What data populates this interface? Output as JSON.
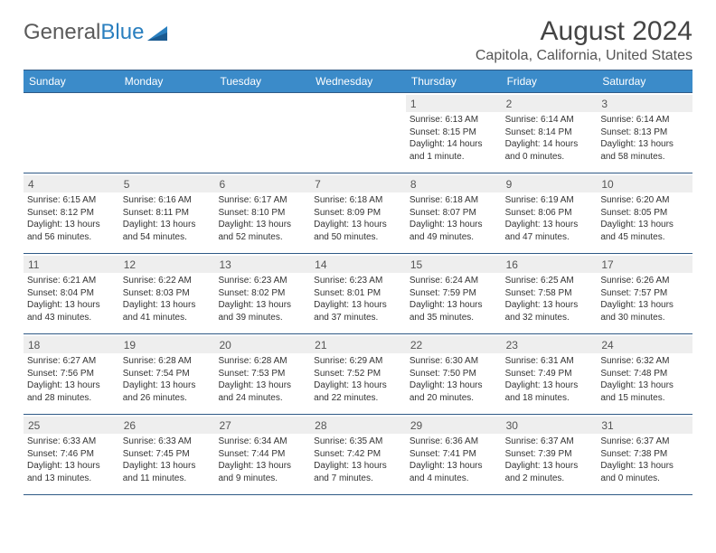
{
  "logo": {
    "text1": "General",
    "text2": "Blue"
  },
  "title": "August 2024",
  "location": "Capitola, California, United States",
  "dow": [
    "Sunday",
    "Monday",
    "Tuesday",
    "Wednesday",
    "Thursday",
    "Friday",
    "Saturday"
  ],
  "colors": {
    "header_bg": "#3b8bc9",
    "header_border": "#2f5a86",
    "daynum_bg": "#eeeeee",
    "logo_blue": "#2a7fbf"
  },
  "weeks": [
    [
      {
        "num": "",
        "empty": true,
        "sunrise": "",
        "sunset": "",
        "daylight": ""
      },
      {
        "num": "",
        "empty": true,
        "sunrise": "",
        "sunset": "",
        "daylight": ""
      },
      {
        "num": "",
        "empty": true,
        "sunrise": "",
        "sunset": "",
        "daylight": ""
      },
      {
        "num": "",
        "empty": true,
        "sunrise": "",
        "sunset": "",
        "daylight": ""
      },
      {
        "num": "1",
        "sunrise": "Sunrise: 6:13 AM",
        "sunset": "Sunset: 8:15 PM",
        "daylight": "Daylight: 14 hours and 1 minute."
      },
      {
        "num": "2",
        "sunrise": "Sunrise: 6:14 AM",
        "sunset": "Sunset: 8:14 PM",
        "daylight": "Daylight: 14 hours and 0 minutes."
      },
      {
        "num": "3",
        "sunrise": "Sunrise: 6:14 AM",
        "sunset": "Sunset: 8:13 PM",
        "daylight": "Daylight: 13 hours and 58 minutes."
      }
    ],
    [
      {
        "num": "4",
        "sunrise": "Sunrise: 6:15 AM",
        "sunset": "Sunset: 8:12 PM",
        "daylight": "Daylight: 13 hours and 56 minutes."
      },
      {
        "num": "5",
        "sunrise": "Sunrise: 6:16 AM",
        "sunset": "Sunset: 8:11 PM",
        "daylight": "Daylight: 13 hours and 54 minutes."
      },
      {
        "num": "6",
        "sunrise": "Sunrise: 6:17 AM",
        "sunset": "Sunset: 8:10 PM",
        "daylight": "Daylight: 13 hours and 52 minutes."
      },
      {
        "num": "7",
        "sunrise": "Sunrise: 6:18 AM",
        "sunset": "Sunset: 8:09 PM",
        "daylight": "Daylight: 13 hours and 50 minutes."
      },
      {
        "num": "8",
        "sunrise": "Sunrise: 6:18 AM",
        "sunset": "Sunset: 8:07 PM",
        "daylight": "Daylight: 13 hours and 49 minutes."
      },
      {
        "num": "9",
        "sunrise": "Sunrise: 6:19 AM",
        "sunset": "Sunset: 8:06 PM",
        "daylight": "Daylight: 13 hours and 47 minutes."
      },
      {
        "num": "10",
        "sunrise": "Sunrise: 6:20 AM",
        "sunset": "Sunset: 8:05 PM",
        "daylight": "Daylight: 13 hours and 45 minutes."
      }
    ],
    [
      {
        "num": "11",
        "sunrise": "Sunrise: 6:21 AM",
        "sunset": "Sunset: 8:04 PM",
        "daylight": "Daylight: 13 hours and 43 minutes."
      },
      {
        "num": "12",
        "sunrise": "Sunrise: 6:22 AM",
        "sunset": "Sunset: 8:03 PM",
        "daylight": "Daylight: 13 hours and 41 minutes."
      },
      {
        "num": "13",
        "sunrise": "Sunrise: 6:23 AM",
        "sunset": "Sunset: 8:02 PM",
        "daylight": "Daylight: 13 hours and 39 minutes."
      },
      {
        "num": "14",
        "sunrise": "Sunrise: 6:23 AM",
        "sunset": "Sunset: 8:01 PM",
        "daylight": "Daylight: 13 hours and 37 minutes."
      },
      {
        "num": "15",
        "sunrise": "Sunrise: 6:24 AM",
        "sunset": "Sunset: 7:59 PM",
        "daylight": "Daylight: 13 hours and 35 minutes."
      },
      {
        "num": "16",
        "sunrise": "Sunrise: 6:25 AM",
        "sunset": "Sunset: 7:58 PM",
        "daylight": "Daylight: 13 hours and 32 minutes."
      },
      {
        "num": "17",
        "sunrise": "Sunrise: 6:26 AM",
        "sunset": "Sunset: 7:57 PM",
        "daylight": "Daylight: 13 hours and 30 minutes."
      }
    ],
    [
      {
        "num": "18",
        "sunrise": "Sunrise: 6:27 AM",
        "sunset": "Sunset: 7:56 PM",
        "daylight": "Daylight: 13 hours and 28 minutes."
      },
      {
        "num": "19",
        "sunrise": "Sunrise: 6:28 AM",
        "sunset": "Sunset: 7:54 PM",
        "daylight": "Daylight: 13 hours and 26 minutes."
      },
      {
        "num": "20",
        "sunrise": "Sunrise: 6:28 AM",
        "sunset": "Sunset: 7:53 PM",
        "daylight": "Daylight: 13 hours and 24 minutes."
      },
      {
        "num": "21",
        "sunrise": "Sunrise: 6:29 AM",
        "sunset": "Sunset: 7:52 PM",
        "daylight": "Daylight: 13 hours and 22 minutes."
      },
      {
        "num": "22",
        "sunrise": "Sunrise: 6:30 AM",
        "sunset": "Sunset: 7:50 PM",
        "daylight": "Daylight: 13 hours and 20 minutes."
      },
      {
        "num": "23",
        "sunrise": "Sunrise: 6:31 AM",
        "sunset": "Sunset: 7:49 PM",
        "daylight": "Daylight: 13 hours and 18 minutes."
      },
      {
        "num": "24",
        "sunrise": "Sunrise: 6:32 AM",
        "sunset": "Sunset: 7:48 PM",
        "daylight": "Daylight: 13 hours and 15 minutes."
      }
    ],
    [
      {
        "num": "25",
        "sunrise": "Sunrise: 6:33 AM",
        "sunset": "Sunset: 7:46 PM",
        "daylight": "Daylight: 13 hours and 13 minutes."
      },
      {
        "num": "26",
        "sunrise": "Sunrise: 6:33 AM",
        "sunset": "Sunset: 7:45 PM",
        "daylight": "Daylight: 13 hours and 11 minutes."
      },
      {
        "num": "27",
        "sunrise": "Sunrise: 6:34 AM",
        "sunset": "Sunset: 7:44 PM",
        "daylight": "Daylight: 13 hours and 9 minutes."
      },
      {
        "num": "28",
        "sunrise": "Sunrise: 6:35 AM",
        "sunset": "Sunset: 7:42 PM",
        "daylight": "Daylight: 13 hours and 7 minutes."
      },
      {
        "num": "29",
        "sunrise": "Sunrise: 6:36 AM",
        "sunset": "Sunset: 7:41 PM",
        "daylight": "Daylight: 13 hours and 4 minutes."
      },
      {
        "num": "30",
        "sunrise": "Sunrise: 6:37 AM",
        "sunset": "Sunset: 7:39 PM",
        "daylight": "Daylight: 13 hours and 2 minutes."
      },
      {
        "num": "31",
        "sunrise": "Sunrise: 6:37 AM",
        "sunset": "Sunset: 7:38 PM",
        "daylight": "Daylight: 13 hours and 0 minutes."
      }
    ]
  ]
}
